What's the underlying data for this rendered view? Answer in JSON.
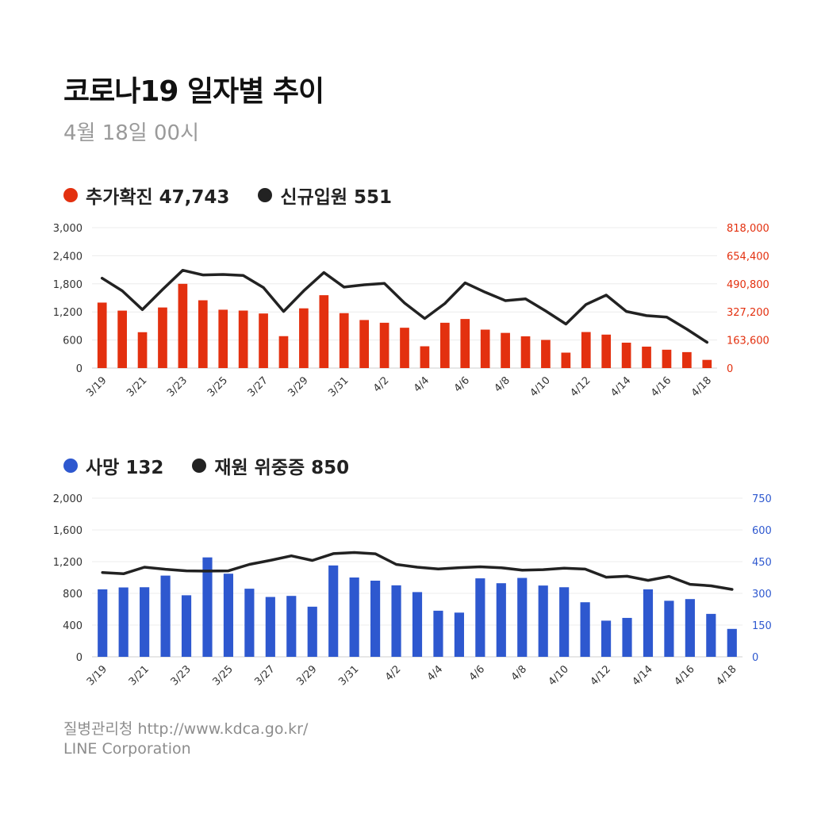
{
  "header": {
    "title": "코로나19 일자별 추이",
    "subtitle": "4월 18일 00시"
  },
  "legend1": {
    "items": [
      {
        "label": "추가확진 47,743",
        "color": "#e3300f"
      },
      {
        "label": "신규입원 551",
        "color": "#222222"
      }
    ]
  },
  "legend2": {
    "items": [
      {
        "label": "사망 132",
        "color": "#2e58cf"
      },
      {
        "label": "재원 위중증 850",
        "color": "#222222"
      }
    ]
  },
  "footer": {
    "source": "질병관리청  http://www.kdca.go.kr/",
    "company": "LINE Corporation"
  },
  "chart_data": [
    {
      "type": "bar",
      "categories": [
        "3/19",
        "3/20",
        "3/21",
        "3/22",
        "3/23",
        "3/24",
        "3/25",
        "3/26",
        "3/27",
        "3/28",
        "3/29",
        "3/30",
        "3/31",
        "4/1",
        "4/2",
        "4/3",
        "4/4",
        "4/5",
        "4/6",
        "4/7",
        "4/8",
        "4/9",
        "4/10",
        "4/11",
        "4/12",
        "4/13",
        "4/14",
        "4/15",
        "4/16",
        "4/17",
        "4/18"
      ],
      "x_tick_labels": [
        "3/19",
        "3/21",
        "3/23",
        "3/25",
        "3/27",
        "3/29",
        "3/31",
        "4/2",
        "4/4",
        "4/6",
        "4/8",
        "4/10",
        "4/12",
        "4/14",
        "4/16",
        "4/18"
      ],
      "series": [
        {
          "name": "추가확진",
          "axis": "right",
          "color": "#e3300f",
          "values": [
            381500,
            334700,
            209000,
            353000,
            490800,
            395000,
            340000,
            335000,
            318000,
            186000,
            348000,
            424600,
            320000,
            280000,
            264000,
            235000,
            127000,
            264000,
            286000,
            224000,
            205000,
            185000,
            164000,
            90000,
            210000,
            195000,
            148000,
            125000,
            107000,
            93000,
            47743
          ]
        },
        {
          "name": "신규입원",
          "axis": "left",
          "color": "#222222",
          "type": "line",
          "values": [
            1920,
            1650,
            1250,
            1680,
            2090,
            1990,
            2000,
            1980,
            1720,
            1210,
            1650,
            2040,
            1730,
            1780,
            1810,
            1390,
            1060,
            1380,
            1820,
            1620,
            1440,
            1480,
            1220,
            940,
            1360,
            1560,
            1210,
            1120,
            1090,
            830,
            551
          ]
        }
      ],
      "y_left": {
        "ticks": [
          0,
          600,
          1200,
          1800,
          2400,
          3000
        ],
        "tick_labels": [
          "0",
          "600",
          "1,200",
          "1,800",
          "2,400",
          "3,000"
        ],
        "ylim": [
          0,
          3000
        ]
      },
      "y_right": {
        "ticks": [
          0,
          163600,
          327200,
          490800,
          654400,
          818000
        ],
        "tick_labels": [
          "0",
          "163,600",
          "327,200",
          "490,800",
          "654,400",
          "818,000"
        ],
        "ylim": [
          0,
          818000
        ],
        "color": "#e3300f"
      },
      "grid": true
    },
    {
      "type": "bar",
      "categories": [
        "3/19",
        "3/20",
        "3/21",
        "3/22",
        "3/23",
        "3/24",
        "3/25",
        "3/26",
        "3/27",
        "3/28",
        "3/29",
        "3/30",
        "3/31",
        "4/1",
        "4/2",
        "4/3",
        "4/4",
        "4/5",
        "4/6",
        "4/7",
        "4/8",
        "4/9",
        "4/10",
        "4/11",
        "4/12",
        "4/13",
        "4/14",
        "4/15",
        "4/16",
        "4/17",
        "4/18"
      ],
      "x_tick_labels": [
        "3/19",
        "3/21",
        "3/23",
        "3/25",
        "3/27",
        "3/29",
        "3/31",
        "4/2",
        "4/4",
        "4/6",
        "4/8",
        "4/10",
        "4/12",
        "4/14",
        "4/16",
        "4/18"
      ],
      "series": [
        {
          "name": "사망",
          "axis": "right",
          "color": "#2e58cf",
          "values": [
            319,
            328,
            329,
            384,
            291,
            470,
            393,
            322,
            283,
            288,
            237,
            432,
            375,
            360,
            338,
            306,
            218,
            209,
            371,
            348,
            373,
            337,
            329,
            258,
            171,
            184,
            319,
            265,
            273,
            203,
            132
          ]
        },
        {
          "name": "재원 위중증",
          "axis": "left",
          "color": "#222222",
          "type": "line",
          "values": [
            1063,
            1047,
            1130,
            1104,
            1084,
            1081,
            1084,
            1165,
            1216,
            1273,
            1215,
            1301,
            1315,
            1299,
            1165,
            1130,
            1108,
            1124,
            1135,
            1123,
            1092,
            1099,
            1117,
            1106,
            1004,
            1016,
            964,
            1014,
            914,
            895,
            850
          ]
        }
      ],
      "y_left": {
        "ticks": [
          0,
          400,
          800,
          1200,
          1600,
          2000
        ],
        "tick_labels": [
          "0",
          "400",
          "800",
          "1,200",
          "1,600",
          "2,000"
        ],
        "ylim": [
          0,
          2000
        ]
      },
      "y_right": {
        "ticks": [
          0,
          150,
          300,
          450,
          600,
          750
        ],
        "tick_labels": [
          "0",
          "150",
          "300",
          "450",
          "600",
          "750"
        ],
        "ylim": [
          0,
          750
        ],
        "color": "#2e58cf"
      },
      "grid": true
    }
  ]
}
